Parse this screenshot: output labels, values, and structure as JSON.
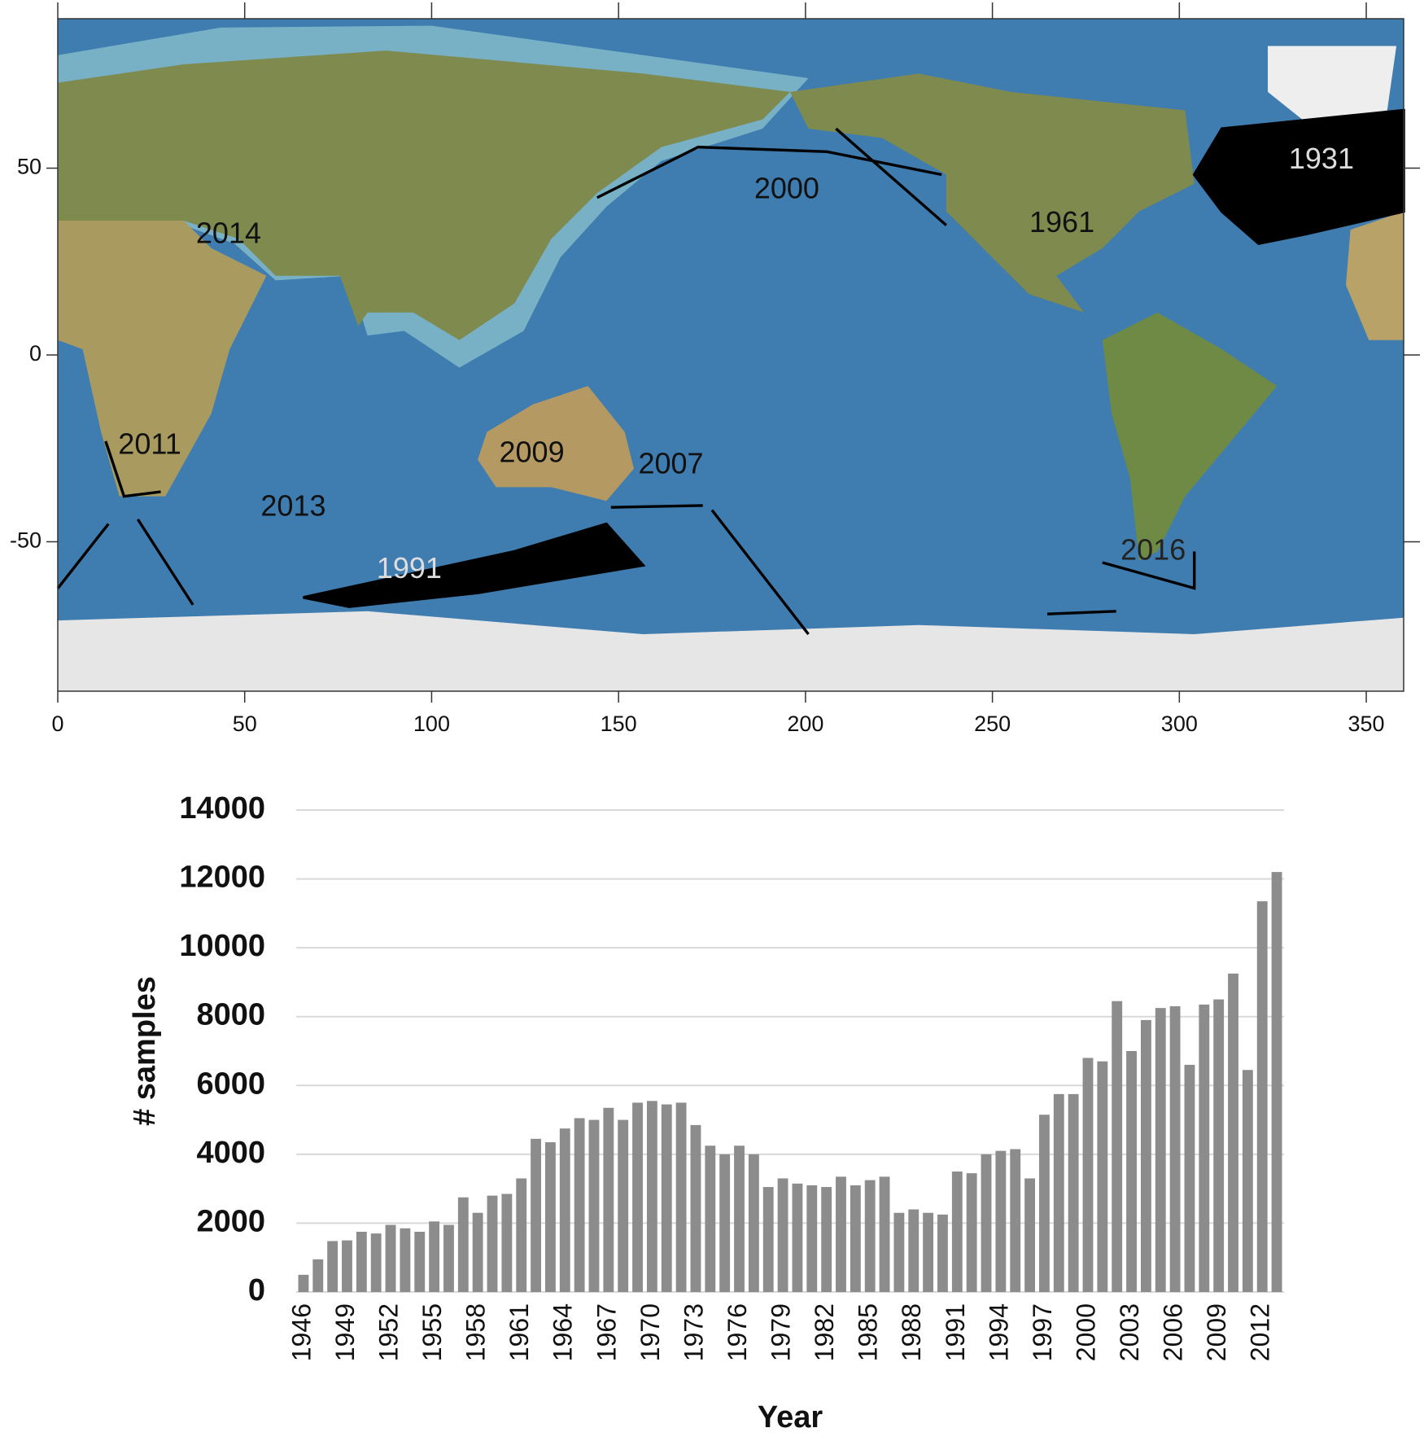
{
  "chart_data": [
    {
      "type": "map",
      "xlim": [
        0,
        360
      ],
      "xticks": [
        0,
        50,
        100,
        150,
        200,
        250,
        300,
        350
      ],
      "ylim": [
        -90,
        90
      ],
      "yticks": [
        -50,
        0,
        50
      ],
      "annotations": [
        {
          "text": "2014",
          "x": 45.7,
          "y": 32,
          "color": "#111111"
        },
        {
          "text": "2000",
          "x": 195,
          "y": 44,
          "color": "#111111"
        },
        {
          "text": "1961",
          "x": 268.6,
          "y": 35,
          "color": "#111111"
        },
        {
          "text": "1931",
          "x": 338,
          "y": 52,
          "color": "#dddddd"
        },
        {
          "text": "2011",
          "x": 24.6,
          "y": -24.4,
          "color": "#111111"
        },
        {
          "text": "2009",
          "x": 126.8,
          "y": -26.6,
          "color": "#111111"
        },
        {
          "text": "2007",
          "x": 164,
          "y": -29.6,
          "color": "#111111"
        },
        {
          "text": "2013",
          "x": 63,
          "y": -41,
          "color": "#111111"
        },
        {
          "text": "1991",
          "x": 94,
          "y": -57.6,
          "color": "#dddddd"
        },
        {
          "text": "2016",
          "x": 293,
          "y": -52.7,
          "color": "#222222"
        }
      ]
    },
    {
      "type": "bar",
      "x_label": "Year",
      "y_label": "# samples",
      "color": "#8c8c8c",
      "grid": true,
      "ylim": [
        0,
        14000
      ],
      "yticks": [
        0,
        2000,
        4000,
        6000,
        8000,
        10000,
        12000,
        14000
      ],
      "categories": [
        "1946",
        null,
        null,
        "1949",
        null,
        null,
        "1952",
        null,
        null,
        "1955",
        null,
        null,
        "1958",
        null,
        null,
        "1961",
        null,
        null,
        "1964",
        null,
        null,
        "1967",
        null,
        null,
        "1970",
        null,
        null,
        "1973",
        null,
        null,
        "1976",
        null,
        null,
        "1979",
        null,
        null,
        "1982",
        null,
        null,
        "1985",
        null,
        null,
        "1988",
        null,
        null,
        "1991",
        null,
        null,
        "1994",
        null,
        null,
        "1997",
        null,
        null,
        "2000",
        null,
        null,
        "2003",
        null,
        null,
        "2006",
        null,
        null,
        "2009",
        null,
        null,
        "2012",
        null
      ],
      "values": [
        500,
        950,
        1480,
        1500,
        1750,
        1700,
        1950,
        1850,
        1750,
        2050,
        1950,
        2750,
        2300,
        2800,
        2850,
        3300,
        4450,
        4350,
        4750,
        5050,
        5000,
        5350,
        5000,
        5500,
        5550,
        5450,
        5500,
        4850,
        4250,
        4000,
        4250,
        4000,
        3050,
        3300,
        3150,
        3100,
        3050,
        3350,
        3100,
        3250,
        3350,
        2300,
        2400,
        2300,
        2250,
        3500,
        3450,
        4000,
        4100,
        4150,
        3300,
        5150,
        5750,
        5750,
        6800,
        6700,
        8450,
        7000,
        7900,
        8250,
        8300,
        6600,
        8350,
        8500,
        9250,
        6450,
        11350,
        12200
      ]
    }
  ]
}
